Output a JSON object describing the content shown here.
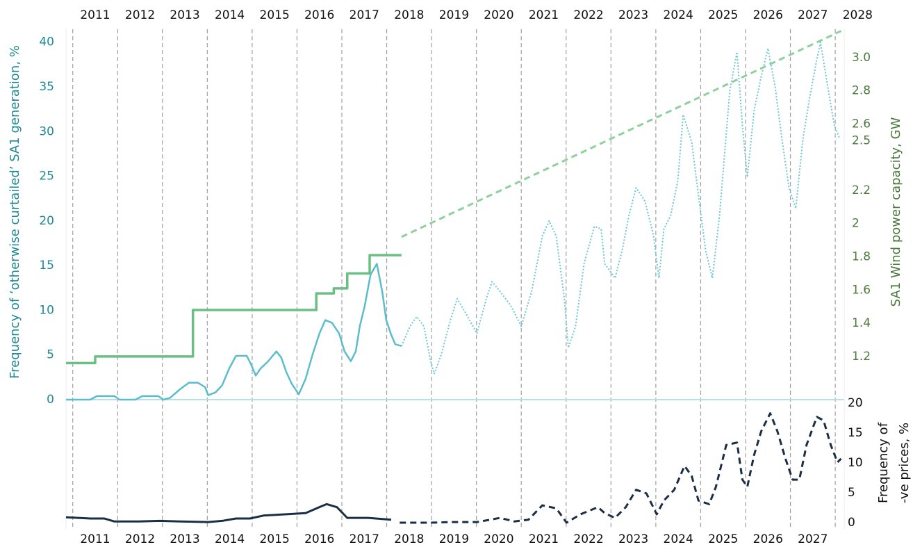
{
  "chart_data": [
    {
      "type": "line",
      "ylabel": "Frequency of ‘otherwise curtailed’ SA1 generation, %",
      "y2label": "SA1 Wind power capacity, GW",
      "ylabel_color": "#1f8a94",
      "y2label_color": "#4a7a3a",
      "xlim": [
        2010.85,
        2028.2
      ],
      "xgrid": [
        2011,
        2012,
        2013,
        2014,
        2015,
        2016,
        2017,
        2018,
        2019,
        2020,
        2021,
        2022,
        2023,
        2024,
        2025,
        2026,
        2027,
        2028
      ],
      "xticks": [
        {
          "value": 2011.5,
          "label": "2011"
        },
        {
          "value": 2012.5,
          "label": "2012"
        },
        {
          "value": 2013.5,
          "label": "2013"
        },
        {
          "value": 2014.5,
          "label": "2014"
        },
        {
          "value": 2015.5,
          "label": "2015"
        },
        {
          "value": 2016.5,
          "label": "2016"
        },
        {
          "value": 2017.5,
          "label": "2017"
        },
        {
          "value": 2018.5,
          "label": "2018"
        },
        {
          "value": 2019.5,
          "label": "2019"
        },
        {
          "value": 2020.5,
          "label": "2020"
        },
        {
          "value": 2021.5,
          "label": "2021"
        },
        {
          "value": 2022.5,
          "label": "2022"
        },
        {
          "value": 2023.5,
          "label": "2023"
        },
        {
          "value": 2024.5,
          "label": "2024"
        },
        {
          "value": 2025.5,
          "label": "2025"
        },
        {
          "value": 2026.5,
          "label": "2026"
        },
        {
          "value": 2027.5,
          "label": "2027"
        },
        {
          "value": 2028.5,
          "label": "2028"
        }
      ],
      "xticks_position": "top",
      "ylim": [
        0,
        42
      ],
      "yticks": [
        0,
        5,
        10,
        15,
        20,
        25,
        30,
        35,
        40
      ],
      "y2lim": [
        0.94,
        3.2
      ],
      "y2ticks": [
        1.2,
        1.4,
        1.6,
        1.8,
        2.0,
        2.2,
        2.5,
        2.6,
        2.8,
        {
          "value": 3.0,
          "label": "3.0"
        }
      ],
      "series": [
        {
          "color": "#5bbdcc",
          "style": "solid",
          "width": 2.5,
          "x": [
            2010.85,
            2011.39,
            2011.54,
            2011.93,
            2012.04,
            2012.4,
            2012.55,
            2012.91,
            2013.02,
            2013.17,
            2013.4,
            2013.59,
            2013.79,
            2013.95,
            2014.02,
            2014.18,
            2014.33,
            2014.49,
            2014.64,
            2014.88,
            2014.98,
            2015.08,
            2015.19,
            2015.34,
            2015.54,
            2015.65,
            2015.76,
            2015.88,
            2016.04,
            2016.19,
            2016.35,
            2016.5,
            2016.63,
            2016.78,
            2016.94,
            2017.06,
            2017.2,
            2017.31,
            2017.4,
            2017.51,
            2017.64,
            2017.78,
            2017.9,
            2017.99,
            2018.09,
            2018.19,
            2018.33
          ],
          "values": [
            0,
            0,
            0.4,
            0.4,
            0,
            0,
            0.4,
            0.4,
            0,
            0.2,
            1.2,
            1.9,
            1.9,
            1.4,
            0.5,
            0.8,
            1.6,
            3.5,
            4.9,
            4.9,
            3.9,
            2.7,
            3.5,
            4.2,
            5.4,
            4.7,
            3.1,
            1.8,
            0.6,
            2.3,
            5.1,
            7.4,
            8.9,
            8.6,
            7.4,
            5.4,
            4.3,
            5.4,
            8.2,
            10.5,
            14,
            15.2,
            12.1,
            8.9,
            7.4,
            6.2,
            6.0
          ]
        },
        {
          "color": "#6cc7d4",
          "style": "dotted",
          "width": 2,
          "x": [
            2018.33,
            2018.52,
            2018.67,
            2018.83,
            2018.98,
            2019.06,
            2019.22,
            2019.42,
            2019.57,
            2019.76,
            2020.01,
            2020.22,
            2020.35,
            2020.53,
            2020.77,
            2021.0,
            2021.23,
            2021.47,
            2021.62,
            2021.78,
            2021.96,
            2022.05,
            2022.21,
            2022.4,
            2022.63,
            2022.78,
            2022.86,
            2022.98,
            2023.09,
            2023.25,
            2023.4,
            2023.56,
            2023.76,
            2023.95,
            2024.07,
            2024.18,
            2024.33,
            2024.49,
            2024.61,
            2024.8,
            2024.95,
            2025.11,
            2025.26,
            2025.42,
            2025.65,
            2025.81,
            2025.93,
            2026.04,
            2026.19,
            2026.35,
            2026.5,
            2026.66,
            2026.81,
            2026.97,
            2027.12,
            2027.28,
            2027.43,
            2027.59,
            2027.67,
            2027.82,
            2027.98,
            2028.1
          ],
          "values": [
            6.0,
            8.2,
            9.3,
            8.2,
            4.3,
            2.9,
            5.1,
            8.9,
            11.3,
            9.7,
            7.4,
            11.3,
            13.2,
            12.1,
            10.5,
            8.2,
            12.1,
            18.3,
            20,
            18.3,
            11.3,
            5.8,
            8.2,
            15.2,
            19.4,
            19.1,
            15.2,
            14.4,
            13.6,
            16.7,
            20.6,
            23.7,
            22.2,
            18.3,
            13.6,
            19.1,
            20.6,
            24.5,
            31.9,
            28.8,
            22.9,
            16.7,
            13.6,
            20.6,
            34.6,
            38.9,
            30.7,
            24.9,
            32.3,
            36.2,
            39.3,
            35,
            29.2,
            23.7,
            21.4,
            29.2,
            33.8,
            38.1,
            40,
            35.4,
            30.7,
            29.2
          ]
        },
        {
          "color": "#6cbf84",
          "style": "solid",
          "width": 3.5,
          "axis": "y2",
          "drawstyle": "steps-post",
          "x": [
            2010.85,
            2011.5,
            2013.68,
            2016.43,
            2016.82,
            2017.12,
            2017.62,
            2018.33
          ],
          "values": [
            1.16,
            1.2,
            1.48,
            1.58,
            1.61,
            1.7,
            1.81,
            1.81
          ]
        },
        {
          "color": "#8fd09c",
          "style": "dashed",
          "width": 3,
          "axis": "y2",
          "x": [
            2018.33,
            2028.13
          ],
          "values": [
            1.92,
            3.16
          ]
        }
      ]
    },
    {
      "type": "line",
      "y2label": [
        "Frequency of",
        "-ve prices, %"
      ],
      "y2label_color": "#111111",
      "xlim": [
        2010.85,
        2028.2
      ],
      "xticks": [
        {
          "value": 2011.5,
          "label": "2011"
        },
        {
          "value": 2012.5,
          "label": "2012"
        },
        {
          "value": 2013.5,
          "label": "2013"
        },
        {
          "value": 2014.5,
          "label": "2014"
        },
        {
          "value": 2015.5,
          "label": "2015"
        },
        {
          "value": 2016.5,
          "label": "2016"
        },
        {
          "value": 2017.5,
          "label": "2017"
        },
        {
          "value": 2018.5,
          "label": "2018"
        },
        {
          "value": 2019.5,
          "label": "2019"
        },
        {
          "value": 2020.5,
          "label": "2020"
        },
        {
          "value": 2021.5,
          "label": "2021"
        },
        {
          "value": 2022.5,
          "label": "2022"
        },
        {
          "value": 2023.5,
          "label": "2023"
        },
        {
          "value": 2024.5,
          "label": "2024"
        },
        {
          "value": 2025.5,
          "label": "2025"
        },
        {
          "value": 2026.5,
          "label": "2026"
        },
        {
          "value": 2027.5,
          "label": "2027"
        }
      ],
      "xticks_position": "bottom",
      "y2lim": [
        0,
        20
      ],
      "y2ticks": [
        0,
        5,
        10,
        15,
        20
      ],
      "series": [
        {
          "color": "#1a2e45",
          "style": "solid",
          "width": 3,
          "axis": "y2",
          "x": [
            2010.85,
            2011.39,
            2011.7,
            2011.93,
            2012.47,
            2012.94,
            2013.4,
            2014.02,
            2014.33,
            2014.64,
            2014.95,
            2015.26,
            2015.73,
            2016.19,
            2016.5,
            2016.66,
            2016.89,
            2017.12,
            2017.59,
            2018.1
          ],
          "values": [
            0.9,
            0.7,
            0.7,
            0.2,
            0.2,
            0.3,
            0.2,
            0.1,
            0.3,
            0.7,
            0.7,
            1.2,
            1.4,
            1.6,
            2.6,
            3.1,
            2.6,
            0.8,
            0.8,
            0.5
          ]
        },
        {
          "color": "#1a2e45",
          "style": "dashed",
          "width": 3,
          "axis": "y2",
          "x": [
            2018.29,
            2018.98,
            2019.45,
            2020.01,
            2020.53,
            2020.84,
            2021.16,
            2021.47,
            2021.78,
            2022.01,
            2022.32,
            2022.71,
            2022.86,
            2023.09,
            2023.33,
            2023.56,
            2023.79,
            2024.02,
            2024.18,
            2024.41,
            2024.64,
            2024.8,
            2024.95,
            2025.19,
            2025.34,
            2025.57,
            2025.81,
            2025.93,
            2026.04,
            2026.19,
            2026.35,
            2026.55,
            2026.71,
            2026.89,
            2027.05,
            2027.2,
            2027.36,
            2027.59,
            2027.74,
            2027.9,
            2028.05,
            2028.13
          ],
          "values": [
            0,
            0,
            0.1,
            0.1,
            0.8,
            0.2,
            0.5,
            2.9,
            2.4,
            0,
            1.4,
            2.6,
            1.6,
            0.8,
            2.6,
            5.5,
            4.9,
            1.4,
            3.7,
            5.5,
            9.5,
            7.8,
            3.7,
            3.1,
            6,
            13,
            13.4,
            7.2,
            6,
            11.3,
            15.3,
            18.3,
            15.3,
            10.7,
            7.2,
            7.2,
            13,
            17.7,
            17.1,
            13,
            10.1,
            10.7
          ]
        }
      ]
    }
  ]
}
